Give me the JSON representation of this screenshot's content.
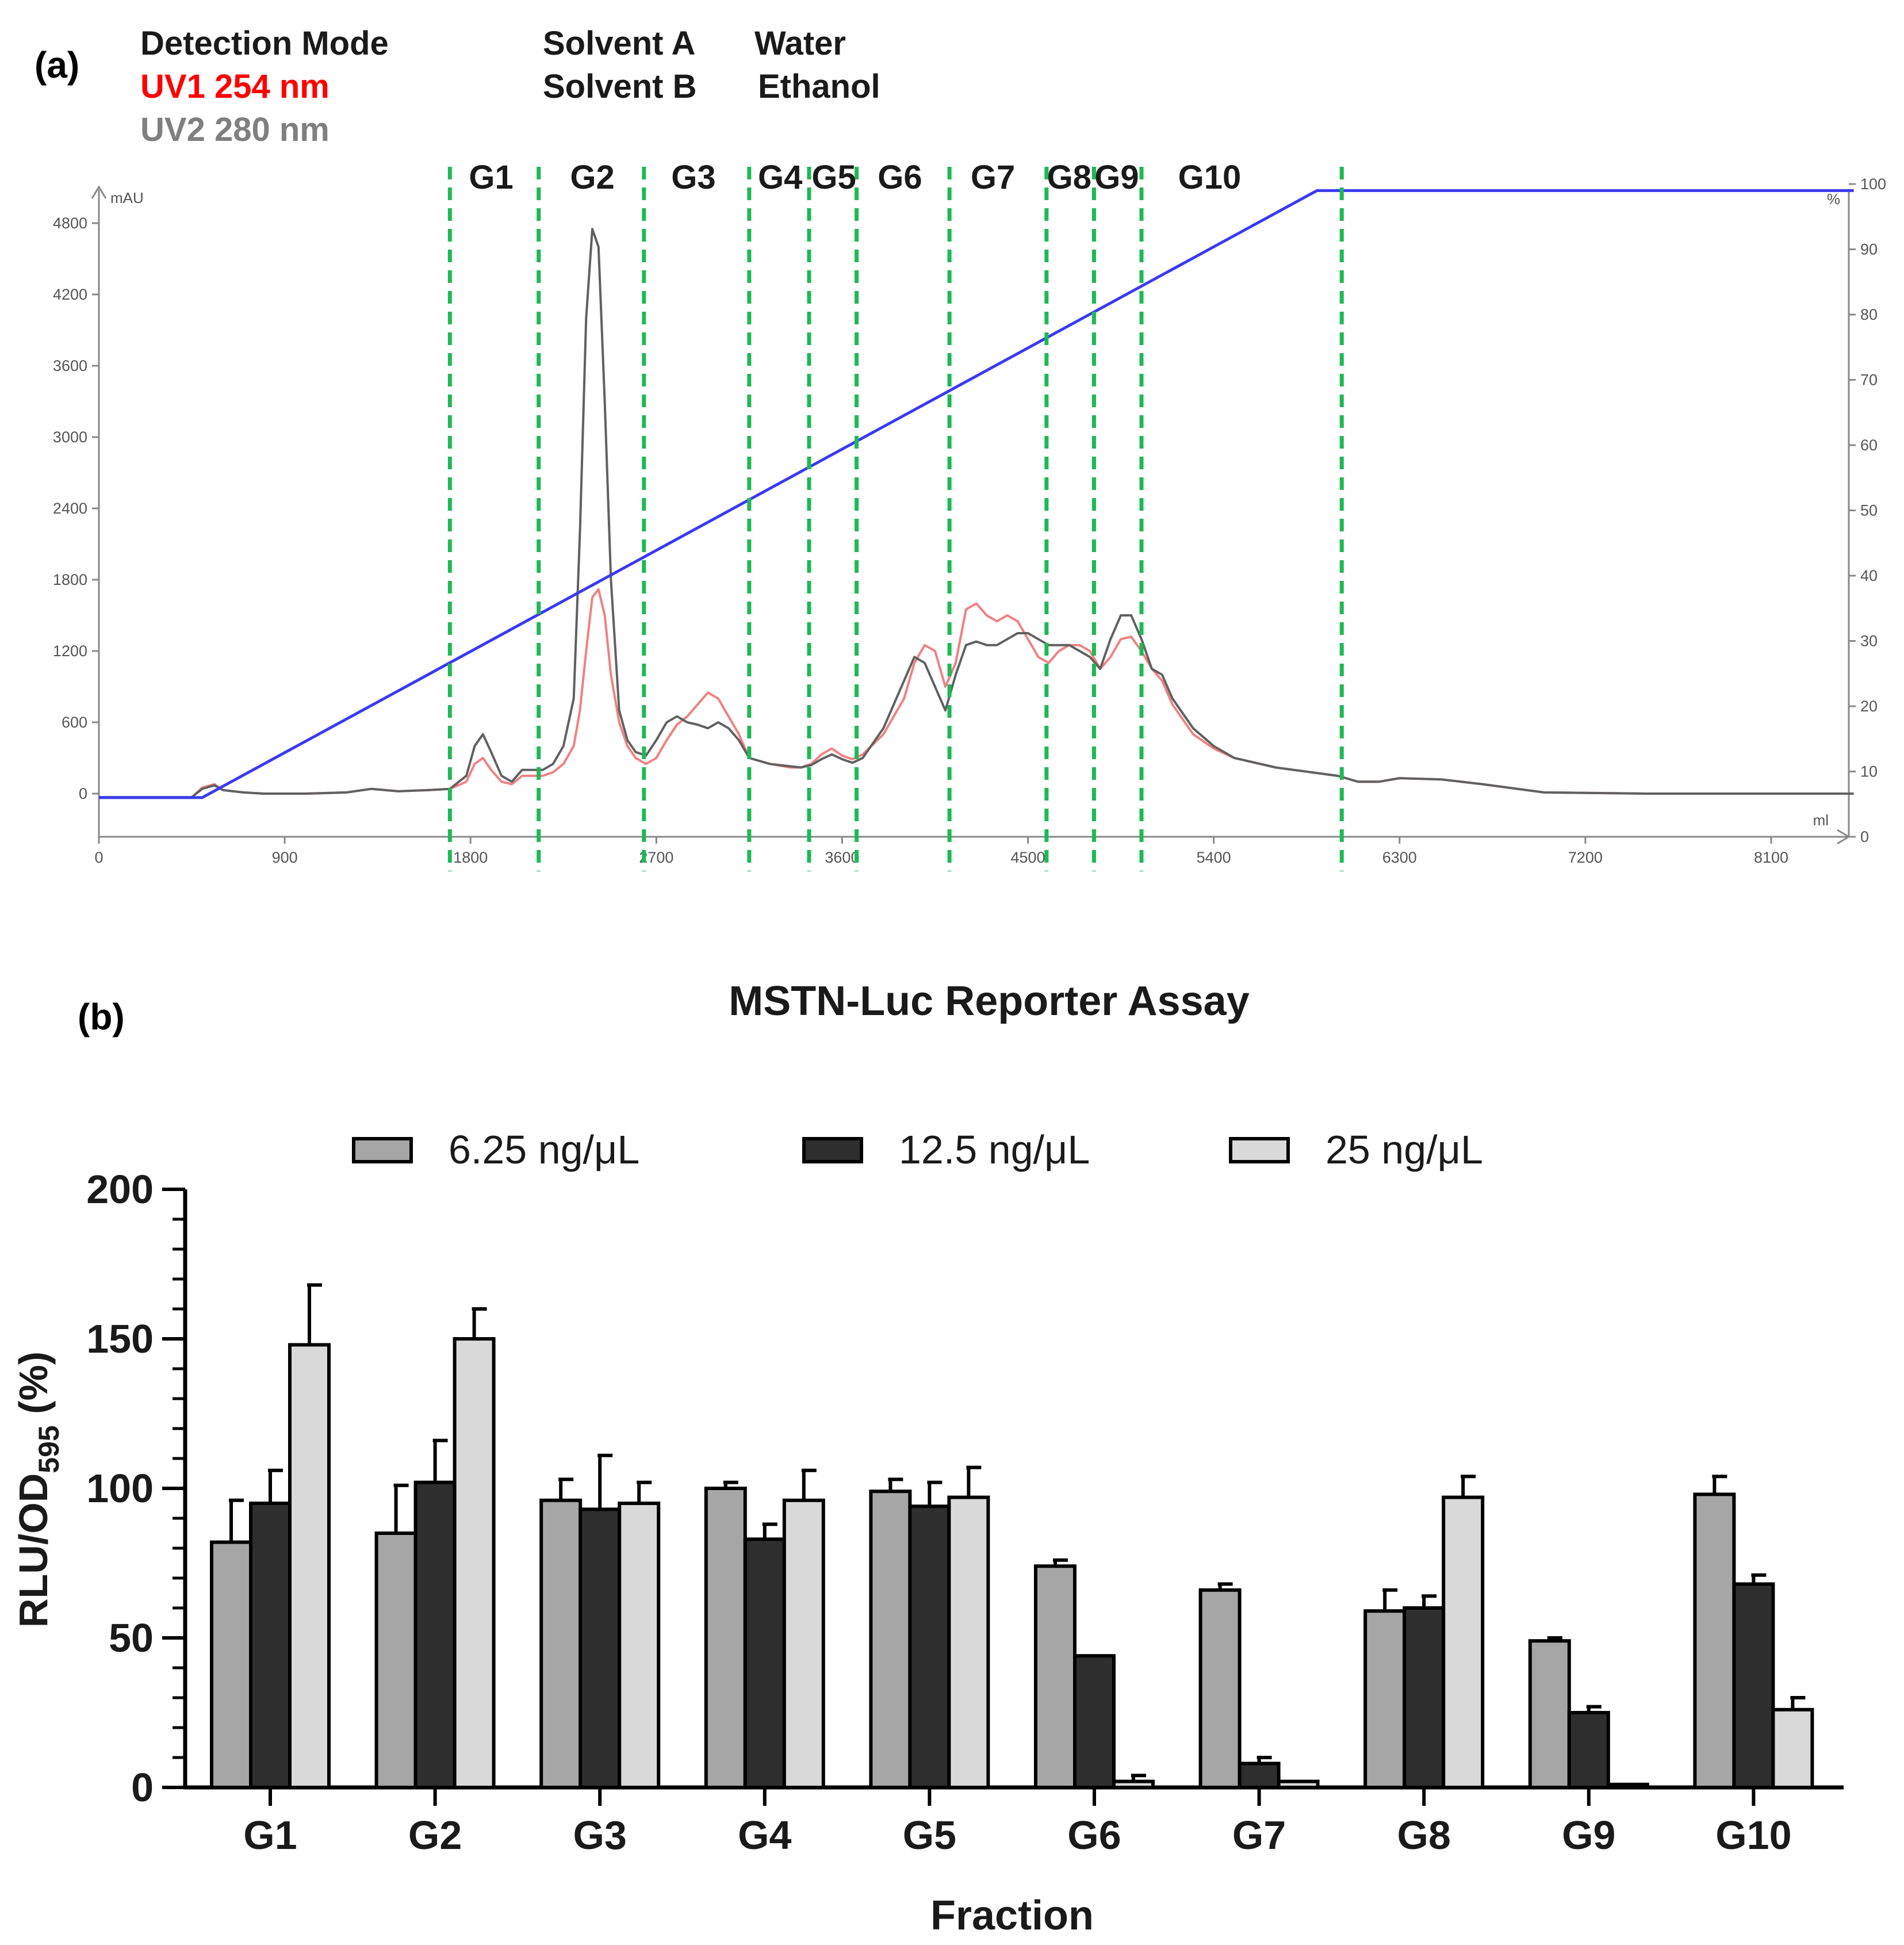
{
  "panel_a": {
    "label": "(a)",
    "legend": {
      "detection_title": "Detection Mode",
      "uv1": "UV1 254 nm",
      "uv2": "UV2 280 nm",
      "solvent_a_label": "Solvent A",
      "solvent_a_value": "Water",
      "solvent_b_label": "Solvent B",
      "solvent_b_value": "Ethanol"
    },
    "colors": {
      "uv1": "#f08080",
      "uv2": "#606060",
      "gradient": "#3a3af0",
      "fraction_line": "#1db954",
      "uv1_text": "#ff0000",
      "uv2_text": "#7f7f7f"
    }
  },
  "panel_b": {
    "label": "(b)",
    "colors": {
      "s1": "#a6a6a6",
      "s2": "#2e2e2e",
      "s3": "#d9d9d9"
    }
  },
  "chart_data": [
    {
      "type": "line",
      "xlabel": "ml",
      "ylabel": "mAU",
      "y2label": "%",
      "xlim": [
        0,
        8500
      ],
      "ylim": [
        -300,
        4900
      ],
      "y2lim": [
        0,
        100
      ],
      "xticks": [
        0,
        900,
        1800,
        2700,
        3600,
        4500,
        5400,
        6300,
        7200,
        8100
      ],
      "yticks": [
        0,
        600,
        1200,
        1800,
        2400,
        3000,
        3600,
        4200,
        4800
      ],
      "y2ticks": [
        0,
        10,
        20,
        30,
        40,
        50,
        60,
        70,
        80,
        90,
        100
      ],
      "fraction_boundaries": [
        1700,
        2130,
        2640,
        3150,
        3440,
        3670,
        4120,
        4590,
        4820,
        5050,
        6020
      ],
      "fraction_labels": [
        "G1",
        "G2",
        "G3",
        "G4",
        "G5",
        "G6",
        "G7",
        "G8",
        "G9",
        "G10"
      ],
      "fraction_label_x": [
        1900,
        2390,
        2880,
        3300,
        3560,
        3880,
        4330,
        4700,
        4930,
        5380
      ],
      "series": [
        {
          "name": "UV1 254 nm",
          "axis": "left",
          "x": [
            0,
            450,
            500,
            560,
            600,
            700,
            800,
            1000,
            1200,
            1320,
            1450,
            1600,
            1700,
            1780,
            1820,
            1860,
            1900,
            1950,
            2000,
            2050,
            2100,
            2150,
            2200,
            2250,
            2300,
            2330,
            2360,
            2390,
            2420,
            2450,
            2480,
            2520,
            2560,
            2600,
            2650,
            2700,
            2750,
            2800,
            2850,
            2900,
            2950,
            3000,
            3050,
            3100,
            3150,
            3250,
            3350,
            3400,
            3450,
            3500,
            3550,
            3600,
            3650,
            3700,
            3800,
            3900,
            3950,
            4000,
            4050,
            4100,
            4150,
            4200,
            4250,
            4300,
            4350,
            4400,
            4450,
            4500,
            4550,
            4600,
            4650,
            4700,
            4750,
            4800,
            4850,
            4900,
            4950,
            5000,
            5050,
            5100,
            5150,
            5200,
            5300,
            5400,
            5500,
            5700,
            6000,
            6100,
            6200,
            6300,
            6500,
            6700,
            7000,
            7500,
            8000,
            8500
          ],
          "values": [
            -30,
            -30,
            50,
            80,
            30,
            10,
            0,
            0,
            10,
            40,
            20,
            30,
            40,
            100,
            250,
            300,
            200,
            100,
            80,
            150,
            150,
            150,
            180,
            250,
            400,
            700,
            1200,
            1650,
            1720,
            1500,
            1000,
            600,
            400,
            300,
            250,
            300,
            450,
            580,
            650,
            750,
            850,
            800,
            650,
            500,
            300,
            250,
            220,
            220,
            250,
            330,
            380,
            320,
            290,
            330,
            500,
            800,
            1100,
            1250,
            1200,
            900,
            1100,
            1550,
            1600,
            1500,
            1450,
            1500,
            1450,
            1300,
            1150,
            1100,
            1200,
            1250,
            1250,
            1200,
            1050,
            1150,
            1300,
            1320,
            1200,
            1050,
            950,
            750,
            500,
            380,
            300,
            220,
            150,
            100,
            100,
            130,
            120,
            80,
            10,
            0,
            0,
            0
          ]
        },
        {
          "name": "UV2 280 nm",
          "axis": "left",
          "x": [
            0,
            450,
            500,
            560,
            600,
            700,
            800,
            1000,
            1200,
            1320,
            1450,
            1600,
            1700,
            1780,
            1820,
            1860,
            1900,
            1950,
            2000,
            2050,
            2100,
            2150,
            2200,
            2250,
            2300,
            2330,
            2360,
            2390,
            2420,
            2450,
            2480,
            2520,
            2560,
            2600,
            2650,
            2700,
            2750,
            2800,
            2850,
            2900,
            2950,
            3000,
            3050,
            3100,
            3150,
            3250,
            3350,
            3400,
            3450,
            3500,
            3550,
            3600,
            3650,
            3700,
            3800,
            3900,
            3950,
            4000,
            4050,
            4100,
            4150,
            4200,
            4250,
            4300,
            4350,
            4400,
            4450,
            4500,
            4550,
            4600,
            4650,
            4700,
            4750,
            4800,
            4850,
            4900,
            4950,
            5000,
            5050,
            5100,
            5150,
            5200,
            5300,
            5400,
            5500,
            5700,
            6000,
            6100,
            6200,
            6300,
            6500,
            6700,
            7000,
            7500,
            8000,
            8500
          ],
          "values": [
            -30,
            -30,
            40,
            70,
            30,
            10,
            0,
            0,
            10,
            40,
            20,
            30,
            40,
            150,
            400,
            500,
            350,
            150,
            100,
            200,
            200,
            200,
            250,
            400,
            800,
            2200,
            4000,
            4750,
            4600,
            3300,
            1800,
            700,
            450,
            350,
            320,
            450,
            600,
            650,
            600,
            580,
            550,
            600,
            550,
            450,
            300,
            250,
            230,
            220,
            240,
            290,
            330,
            290,
            260,
            300,
            550,
            950,
            1150,
            1100,
            900,
            700,
            1000,
            1250,
            1280,
            1250,
            1250,
            1300,
            1350,
            1350,
            1300,
            1250,
            1250,
            1250,
            1200,
            1150,
            1050,
            1300,
            1500,
            1500,
            1300,
            1050,
            1000,
            800,
            550,
            400,
            300,
            220,
            150,
            100,
            100,
            130,
            120,
            80,
            10,
            0,
            0,
            0
          ]
        },
        {
          "name": "Solvent B",
          "axis": "right",
          "x": [
            0,
            500,
            5900,
            8500
          ],
          "values": [
            6,
            6,
            99,
            99
          ]
        }
      ]
    },
    {
      "type": "bar",
      "title": "MSTN-Luc Reporter Assay",
      "xlabel": "Fraction",
      "ylabel_main": "RLU/OD",
      "ylabel_sub": "595",
      "ylabel_suffix": " (%)",
      "ylim": [
        0,
        200
      ],
      "yticks": [
        0,
        50,
        100,
        150,
        200
      ],
      "categories": [
        "G1",
        "G2",
        "G3",
        "G4",
        "G5",
        "G6",
        "G7",
        "G8",
        "G9",
        "G10"
      ],
      "series": [
        {
          "name": "6.25 ng/μL",
          "values": [
            82,
            85,
            96,
            100,
            99,
            74,
            66,
            59,
            49,
            98
          ],
          "errors": [
            14,
            16,
            7,
            2,
            4,
            2,
            2,
            7,
            1,
            6
          ]
        },
        {
          "name": "12.5 ng/μL",
          "values": [
            95,
            102,
            93,
            83,
            94,
            44,
            8,
            60,
            25,
            68
          ],
          "errors": [
            11,
            14,
            18,
            5,
            8,
            0,
            2,
            4,
            2,
            3
          ]
        },
        {
          "name": "25 ng/μL",
          "values": [
            148,
            150,
            95,
            96,
            97,
            2,
            2,
            97,
            1,
            26
          ],
          "errors": [
            20,
            10,
            7,
            10,
            10,
            2,
            0,
            7,
            0,
            4
          ]
        }
      ]
    }
  ]
}
